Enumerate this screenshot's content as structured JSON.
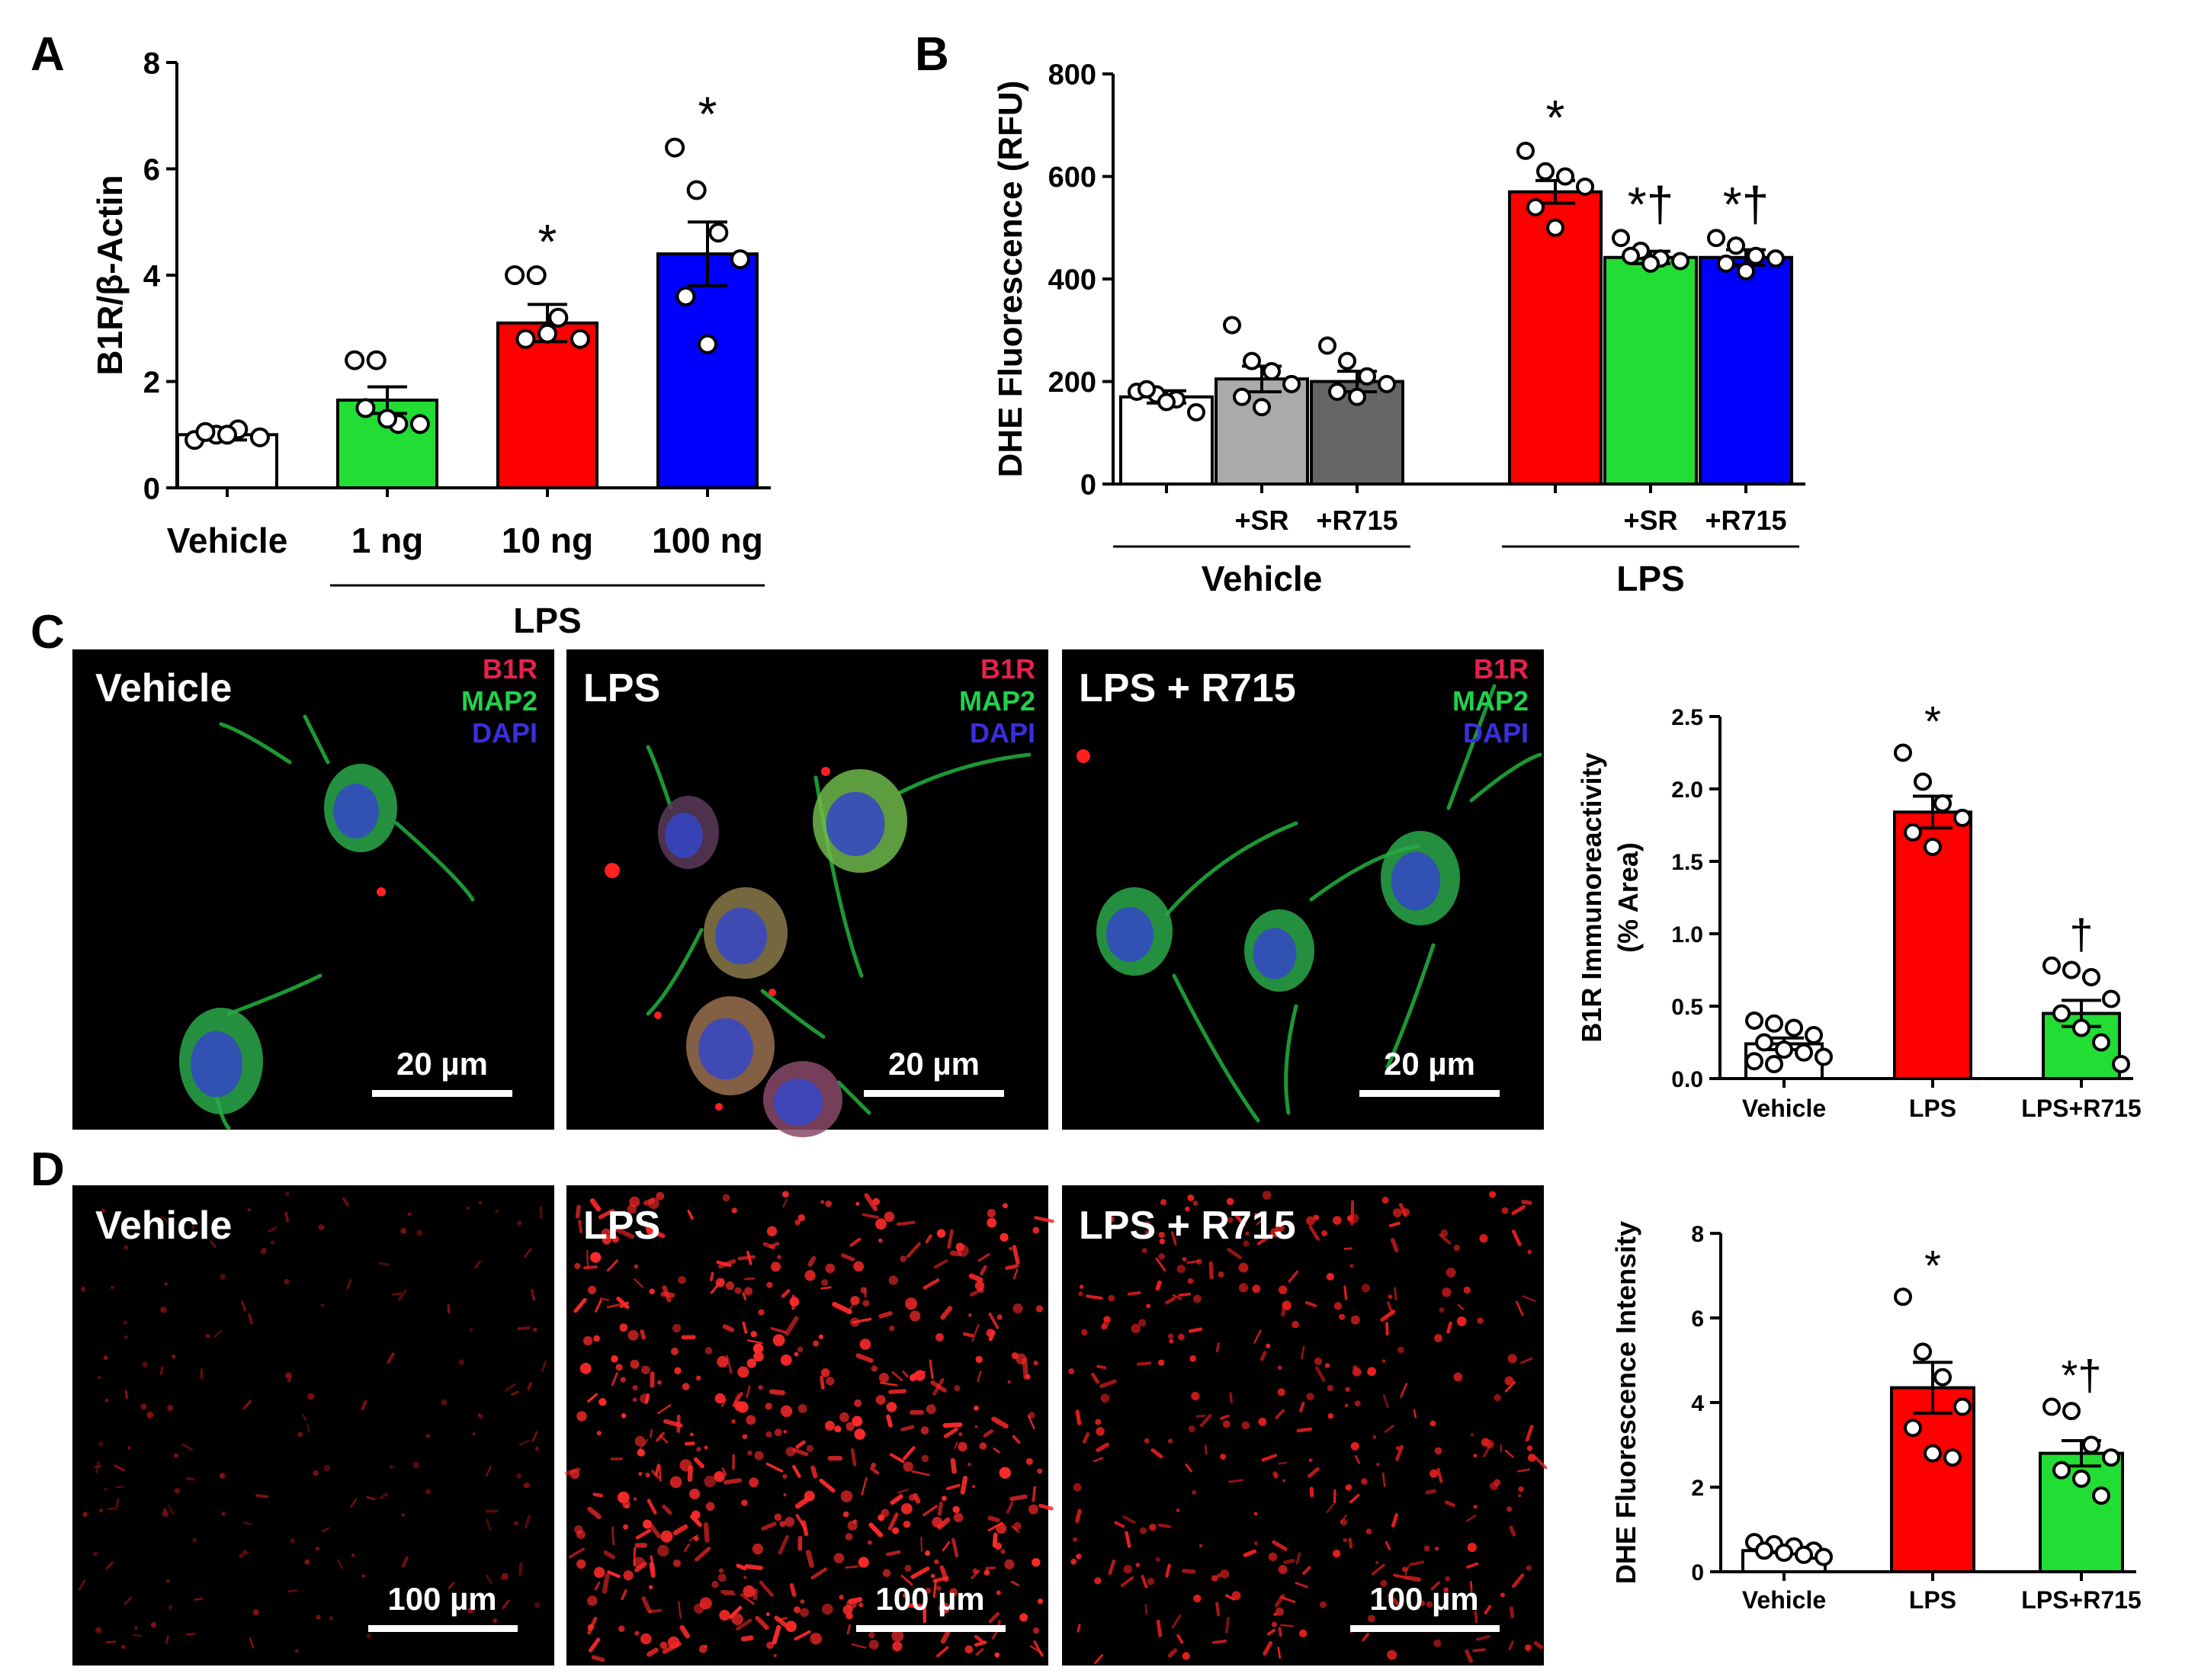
{
  "panel_labels": {
    "a": "A",
    "b": "B",
    "c": "C",
    "d": "D"
  },
  "micrographs": {
    "channel_labels": [
      "B1R",
      "MAP2",
      "DAPI"
    ],
    "channel_colors": [
      "#e8204a",
      "#21d24a",
      "#3b2fe0"
    ],
    "c_panels": [
      {
        "title": "Vehicle",
        "scale": "20 µm"
      },
      {
        "title": "LPS",
        "scale": "20 µm"
      },
      {
        "title": "LPS + R715",
        "scale": "20 µm"
      }
    ],
    "d_panels": [
      {
        "title": "Vehicle",
        "scale": "100 µm"
      },
      {
        "title": "LPS",
        "scale": "100 µm"
      },
      {
        "title": "LPS + R715",
        "scale": "100 µm"
      }
    ]
  },
  "chart_data": [
    {
      "id": "A",
      "type": "bar",
      "ylabel": "B1R/β-Actin",
      "ylim": [
        0,
        8
      ],
      "yticks": [
        0,
        2,
        4,
        6,
        8
      ],
      "categories": [
        "Vehicle",
        "1 ng",
        "10 ng",
        "100 ng"
      ],
      "group_labels": [
        {
          "label": "LPS",
          "from": 1,
          "to": 3
        }
      ],
      "values": [
        1.0,
        1.65,
        3.1,
        4.4
      ],
      "sem": [
        0.1,
        0.25,
        0.35,
        0.6
      ],
      "colors": [
        "#ffffff",
        "#22dd33",
        "#ff0000",
        "#0000ff"
      ],
      "annotations": [
        "",
        "",
        "*",
        "*"
      ],
      "points": [
        [
          0.9,
          1.0,
          1.1,
          0.95,
          1.05,
          1.0
        ],
        [
          2.4,
          2.4,
          1.2,
          1.2,
          1.5,
          1.3
        ],
        [
          4.0,
          4.0,
          3.2,
          2.8,
          2.8,
          2.9
        ],
        [
          6.4,
          5.6,
          4.8,
          4.3,
          3.6,
          2.7
        ]
      ]
    },
    {
      "id": "B",
      "type": "bar",
      "ylabel": "DHE Fluorescence (RFU)",
      "ylim": [
        0,
        800
      ],
      "yticks": [
        0,
        200,
        400,
        600,
        800
      ],
      "categories": [
        "",
        "+SR",
        "+R715",
        "",
        "+SR",
        "+R715"
      ],
      "group_labels": [
        {
          "label": "Vehicle",
          "from": 0,
          "to": 2
        },
        {
          "label": "LPS",
          "from": 3,
          "to": 5
        }
      ],
      "values": [
        170,
        205,
        200,
        570,
        442,
        442
      ],
      "sem": [
        12,
        25,
        20,
        22,
        12,
        15
      ],
      "colors": [
        "#ffffff",
        "#aaaaaa",
        "#666666",
        "#ff0000",
        "#22dd33",
        "#0000ff"
      ],
      "annotations": [
        "",
        "",
        "",
        "*",
        "*†",
        "*†"
      ],
      "points": [
        [
          180,
          175,
          165,
          140,
          185,
          160
        ],
        [
          310,
          240,
          220,
          195,
          170,
          150
        ],
        [
          270,
          240,
          210,
          195,
          180,
          170
        ],
        [
          650,
          610,
          600,
          580,
          540,
          500
        ],
        [
          480,
          455,
          440,
          435,
          445,
          430
        ],
        [
          480,
          465,
          445,
          440,
          430,
          415
        ]
      ]
    },
    {
      "id": "C",
      "type": "bar",
      "ylabel": "B1R Immunoreactivity",
      "ylabel2": "(% Area)",
      "ylim": [
        0,
        2.5
      ],
      "yticks": [
        0.0,
        0.5,
        1.0,
        1.5,
        2.0,
        2.5
      ],
      "ytick_labels": [
        "0.0",
        "0.5",
        "1.0",
        "1.5",
        "2.0",
        "2.5"
      ],
      "categories": [
        "Vehicle",
        "LPS",
        "LPS+R715"
      ],
      "values": [
        0.24,
        1.84,
        0.45
      ],
      "sem": [
        0.04,
        0.11,
        0.09
      ],
      "colors": [
        "#ffffff",
        "#ff0000",
        "#22dd33"
      ],
      "annotations": [
        "",
        "*",
        "†"
      ],
      "points": [
        [
          0.4,
          0.38,
          0.35,
          0.3,
          0.25,
          0.2,
          0.18,
          0.15,
          0.12,
          0.1
        ],
        [
          2.25,
          2.05,
          1.9,
          1.8,
          1.7,
          1.6
        ],
        [
          0.78,
          0.75,
          0.7,
          0.55,
          0.45,
          0.35,
          0.25,
          0.1
        ]
      ]
    },
    {
      "id": "D",
      "type": "bar",
      "ylabel": "DHE Fluorescence Intensity",
      "ylim": [
        0,
        8
      ],
      "yticks": [
        0,
        2,
        4,
        6,
        8
      ],
      "categories": [
        "Vehicle",
        "LPS",
        "LPS+R715"
      ],
      "values": [
        0.5,
        4.35,
        2.8
      ],
      "sem": [
        0.05,
        0.6,
        0.3
      ],
      "colors": [
        "#ffffff",
        "#ff0000",
        "#22dd33"
      ],
      "annotations": [
        "",
        "*",
        "*†"
      ],
      "points": [
        [
          0.7,
          0.65,
          0.6,
          0.5,
          0.5,
          0.45,
          0.4,
          0.35
        ],
        [
          6.5,
          5.2,
          4.6,
          3.9,
          3.4,
          2.8,
          2.7
        ],
        [
          3.9,
          3.8,
          3.0,
          2.7,
          2.4,
          2.2,
          1.8
        ]
      ]
    }
  ]
}
